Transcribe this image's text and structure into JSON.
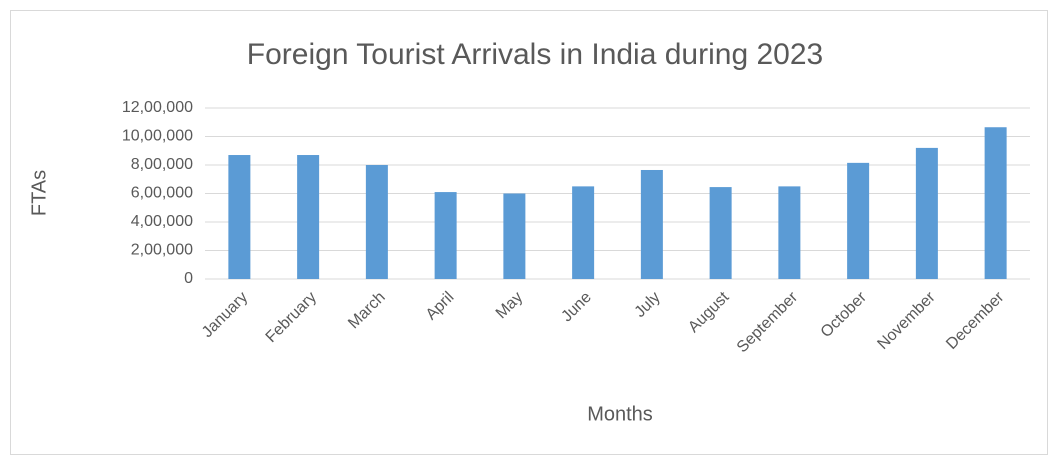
{
  "chart_data": {
    "type": "bar",
    "title": "Foreign Tourist Arrivals in India during 2023",
    "x_label": "Months",
    "y_label": "FTAs",
    "categories": [
      "January",
      "February",
      "March",
      "April",
      "May",
      "June",
      "July",
      "August",
      "September",
      "October",
      "November",
      "December"
    ],
    "values": [
      870000,
      870000,
      800000,
      610000,
      600000,
      650000,
      765000,
      645000,
      650000,
      815000,
      920000,
      1065000
    ],
    "color": "#5b9bd5",
    "ylim": [
      0,
      1200000
    ],
    "yticks": [
      0,
      {
        "value": 200000,
        "label": "2,00,000"
      },
      {
        "value": 400000,
        "label": "4,00,000"
      },
      {
        "value": 600000,
        "label": "6,00,000"
      },
      {
        "value": 800000,
        "label": "8,00,000"
      },
      {
        "value": 1000000,
        "label": "10,00,000"
      },
      {
        "value": 1200000,
        "label": "12,00,000"
      }
    ],
    "grid": true
  }
}
